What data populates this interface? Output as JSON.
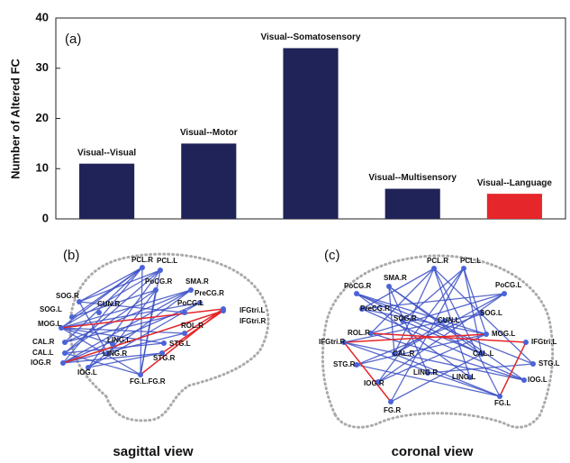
{
  "chart_data": {
    "type": "bar",
    "annotation": "(a)",
    "y_label": "Number of Altered FC",
    "categories": [
      "Visual--Visual",
      "Visual--Motor",
      "Visual--Somatosensory",
      "Visual--Multisensory",
      "Visual--Language"
    ],
    "values": [
      11,
      15,
      34,
      6,
      5
    ],
    "colors": [
      "#1f2357",
      "#1f2357",
      "#1f2357",
      "#1f2357",
      "#e5262a"
    ],
    "ylim": [
      0,
      40
    ],
    "yticks": [
      0,
      10,
      20,
      30,
      40
    ]
  },
  "panels": [
    {
      "label": "(b)",
      "caption": "sagittal view",
      "nodes": [
        "PCL.R",
        "PCL.L",
        "SMA.R",
        "PoCG.R",
        "PreCG.R",
        "PoCG.L",
        "SOG.R",
        "CUN.R",
        "SOG.L",
        "MOG.L",
        "ROL.R",
        "IFGtri.L",
        "IFGtri.R",
        "STG.L",
        "STG.R",
        "CAL.R",
        "CAL.L",
        "IOG.R",
        "LING.L",
        "LING.R",
        "IOG.L",
        "FG.L.FG.R"
      ]
    },
    {
      "label": "(c)",
      "caption": "coronal view",
      "nodes": [
        "PCL.R",
        "PCL.L",
        "SMA.R",
        "PoCG.R",
        "PoCG.L",
        "PreCG.R",
        "SOG.R",
        "SOG.L",
        "CUN.L",
        "ROL.R",
        "MOG.L",
        "IFGtri.L",
        "IFGtri.R",
        "CAL.R",
        "CAL.L",
        "STG.R",
        "STG.L",
        "LING.R",
        "LING.L",
        "IOG.R",
        "IOG.L",
        "FG.R",
        "FG.L"
      ]
    }
  ]
}
